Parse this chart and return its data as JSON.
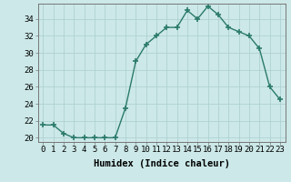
{
  "x": [
    0,
    1,
    2,
    3,
    4,
    5,
    6,
    7,
    8,
    9,
    10,
    11,
    12,
    13,
    14,
    15,
    16,
    17,
    18,
    19,
    20,
    21,
    22,
    23
  ],
  "y": [
    21.5,
    21.5,
    20.5,
    20.0,
    20.0,
    20.0,
    20.0,
    20.0,
    23.5,
    29.0,
    31.0,
    32.0,
    33.0,
    33.0,
    35.0,
    34.0,
    35.5,
    34.5,
    33.0,
    32.5,
    32.0,
    30.5,
    26.0,
    24.5
  ],
  "line_color": "#2a7a6a",
  "marker": "+",
  "markersize": 4,
  "markeredgewidth": 1.2,
  "linewidth": 1.0,
  "xlabel": "Humidex (Indice chaleur)",
  "xlim": [
    -0.5,
    23.5
  ],
  "ylim": [
    19.5,
    35.8
  ],
  "yticks": [
    20,
    22,
    24,
    26,
    28,
    30,
    32,
    34
  ],
  "xticks": [
    0,
    1,
    2,
    3,
    4,
    5,
    6,
    7,
    8,
    9,
    10,
    11,
    12,
    13,
    14,
    15,
    16,
    17,
    18,
    19,
    20,
    21,
    22,
    23
  ],
  "bg_color": "#cce8e8",
  "grid_color": "#aacece",
  "tick_labelsize": 6.5,
  "xlabel_fontsize": 7.5,
  "font_family": "monospace"
}
